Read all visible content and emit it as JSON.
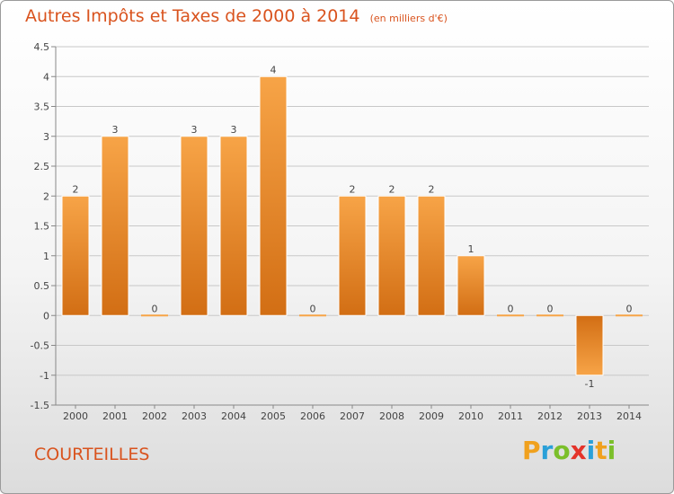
{
  "chart_data": {
    "type": "bar",
    "title": "Autres Impôts et Taxes de 2000 à 2014",
    "subtitle": "(en milliers d'€)",
    "categories": [
      "2000",
      "2001",
      "2002",
      "2003",
      "2004",
      "2005",
      "2006",
      "2007",
      "2008",
      "2009",
      "2010",
      "2011",
      "2012",
      "2013",
      "2014"
    ],
    "values": [
      2,
      3,
      0,
      3,
      3,
      4,
      0,
      2,
      2,
      2,
      1,
      0,
      0,
      -1,
      0
    ],
    "data_labels": [
      "2",
      "3",
      "0",
      "3",
      "3",
      "4",
      "0",
      "2",
      "2",
      "2",
      "1",
      "0",
      "0",
      "-1",
      "0"
    ],
    "ylim": [
      -1.5,
      4.5
    ],
    "yticks": [
      -1.5,
      -1,
      -0.5,
      0,
      0.5,
      1,
      1.5,
      2,
      2.5,
      3,
      3.5,
      4,
      4.5
    ],
    "ytick_labels": [
      "-1.5",
      "-1",
      "-0.5",
      "0",
      "0.5",
      "1",
      "1.5",
      "2",
      "2.5",
      "3",
      "3.5",
      "4",
      "4.5"
    ],
    "grid": true,
    "colors": {
      "bar_top": "#f7a447",
      "bar_bottom": "#d26e14",
      "grid": "#c8c8c8",
      "text": "#d9531e"
    }
  },
  "commune": "COURTEILLES",
  "brand": {
    "letters": [
      "P",
      "r",
      "o",
      "x",
      "i",
      "t",
      "i"
    ],
    "colors": [
      "#f0a11e",
      "#2aa0d8",
      "#7bbf2a",
      "#e4332a",
      "#2aa0d8",
      "#f0a11e",
      "#7bbf2a"
    ]
  }
}
